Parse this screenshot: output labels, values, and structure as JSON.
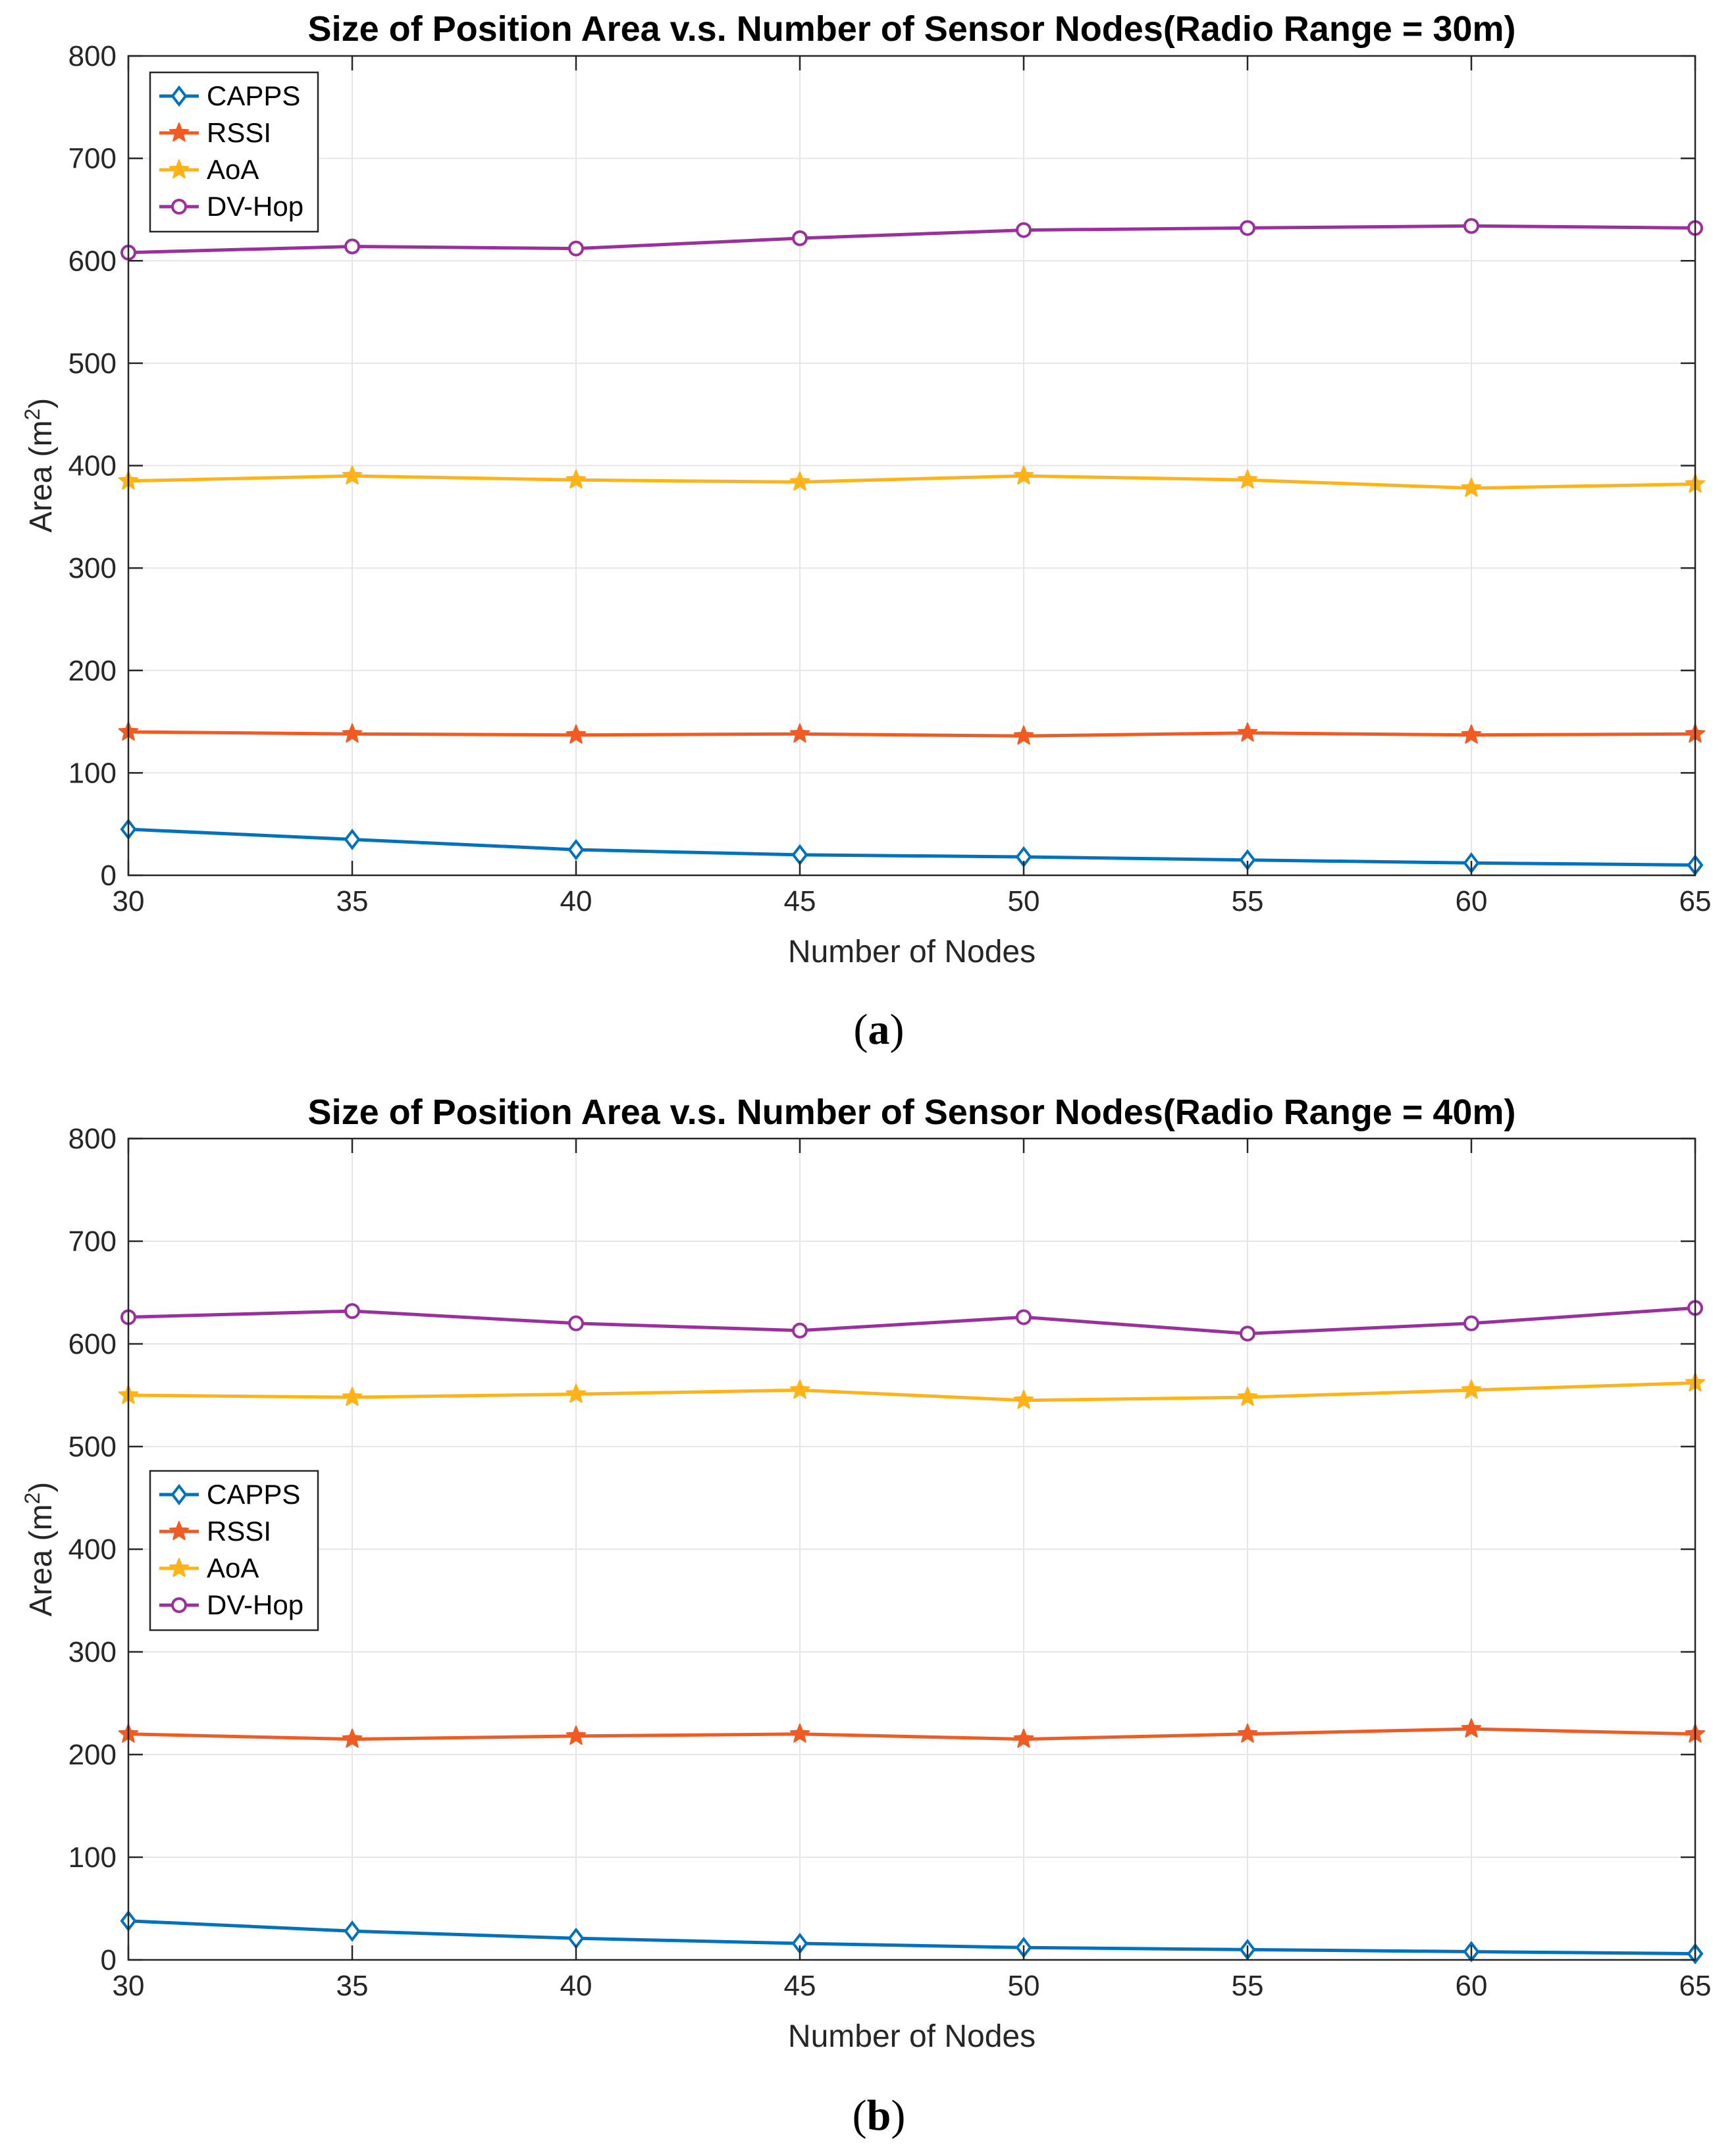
{
  "chart_data": [
    {
      "type": "line",
      "title": "Size of Position Area v.s. Number of Sensor Nodes(Radio Range = 30m)",
      "xlabel": "Number of Nodes",
      "ylabel_main": "Area (m",
      "ylabel_sup": "2",
      "ylabel_end": ")",
      "caption_open": "(",
      "caption_letter": "a",
      "caption_close": ")",
      "x": [
        30,
        35,
        40,
        45,
        50,
        55,
        60,
        65
      ],
      "xticks": [
        30,
        35,
        40,
        45,
        50,
        55,
        60,
        65
      ],
      "yticks": [
        0,
        100,
        200,
        300,
        400,
        500,
        600,
        700,
        800
      ],
      "xlim": [
        30,
        65
      ],
      "ylim": [
        0,
        800
      ],
      "grid": true,
      "legend_position": "top-left",
      "series": [
        {
          "name": "CAPPS",
          "color": "#0072BD",
          "marker": "diamond",
          "values": [
            45,
            35,
            25,
            20,
            18,
            15,
            12,
            10
          ]
        },
        {
          "name": "RSSI",
          "color": "#F15A22",
          "marker": "star",
          "values": [
            140,
            138,
            137,
            138,
            136,
            139,
            137,
            138
          ]
        },
        {
          "name": "AoA",
          "color": "#FFB319",
          "marker": "star",
          "values": [
            385,
            390,
            386,
            384,
            390,
            386,
            378,
            382
          ]
        },
        {
          "name": "DV-Hop",
          "color": "#9B2F9E",
          "marker": "circle",
          "values": [
            608,
            614,
            612,
            622,
            630,
            632,
            634,
            632
          ]
        }
      ]
    },
    {
      "type": "line",
      "title": "Size of Position Area v.s. Number of Sensor Nodes(Radio Range = 40m)",
      "xlabel": "Number of Nodes",
      "ylabel_main": "Area (m",
      "ylabel_sup": "2",
      "ylabel_end": ")",
      "caption_open": "(",
      "caption_letter": "b",
      "caption_close": ")",
      "x": [
        30,
        35,
        40,
        45,
        50,
        55,
        60,
        65
      ],
      "xticks": [
        30,
        35,
        40,
        45,
        50,
        55,
        60,
        65
      ],
      "yticks": [
        0,
        100,
        200,
        300,
        400,
        500,
        600,
        700,
        800
      ],
      "xlim": [
        30,
        65
      ],
      "ylim": [
        0,
        800
      ],
      "grid": true,
      "legend_position": "middle-left",
      "series": [
        {
          "name": "CAPPS",
          "color": "#0072BD",
          "marker": "diamond",
          "values": [
            38,
            28,
            21,
            16,
            12,
            10,
            8,
            6
          ]
        },
        {
          "name": "RSSI",
          "color": "#F15A22",
          "marker": "star",
          "values": [
            220,
            215,
            218,
            220,
            215,
            220,
            225,
            220
          ]
        },
        {
          "name": "AoA",
          "color": "#FFB319",
          "marker": "star",
          "values": [
            550,
            548,
            551,
            555,
            545,
            548,
            555,
            562
          ]
        },
        {
          "name": "DV-Hop",
          "color": "#9B2F9E",
          "marker": "circle",
          "values": [
            626,
            632,
            620,
            613,
            626,
            610,
            620,
            635
          ]
        }
      ]
    }
  ]
}
